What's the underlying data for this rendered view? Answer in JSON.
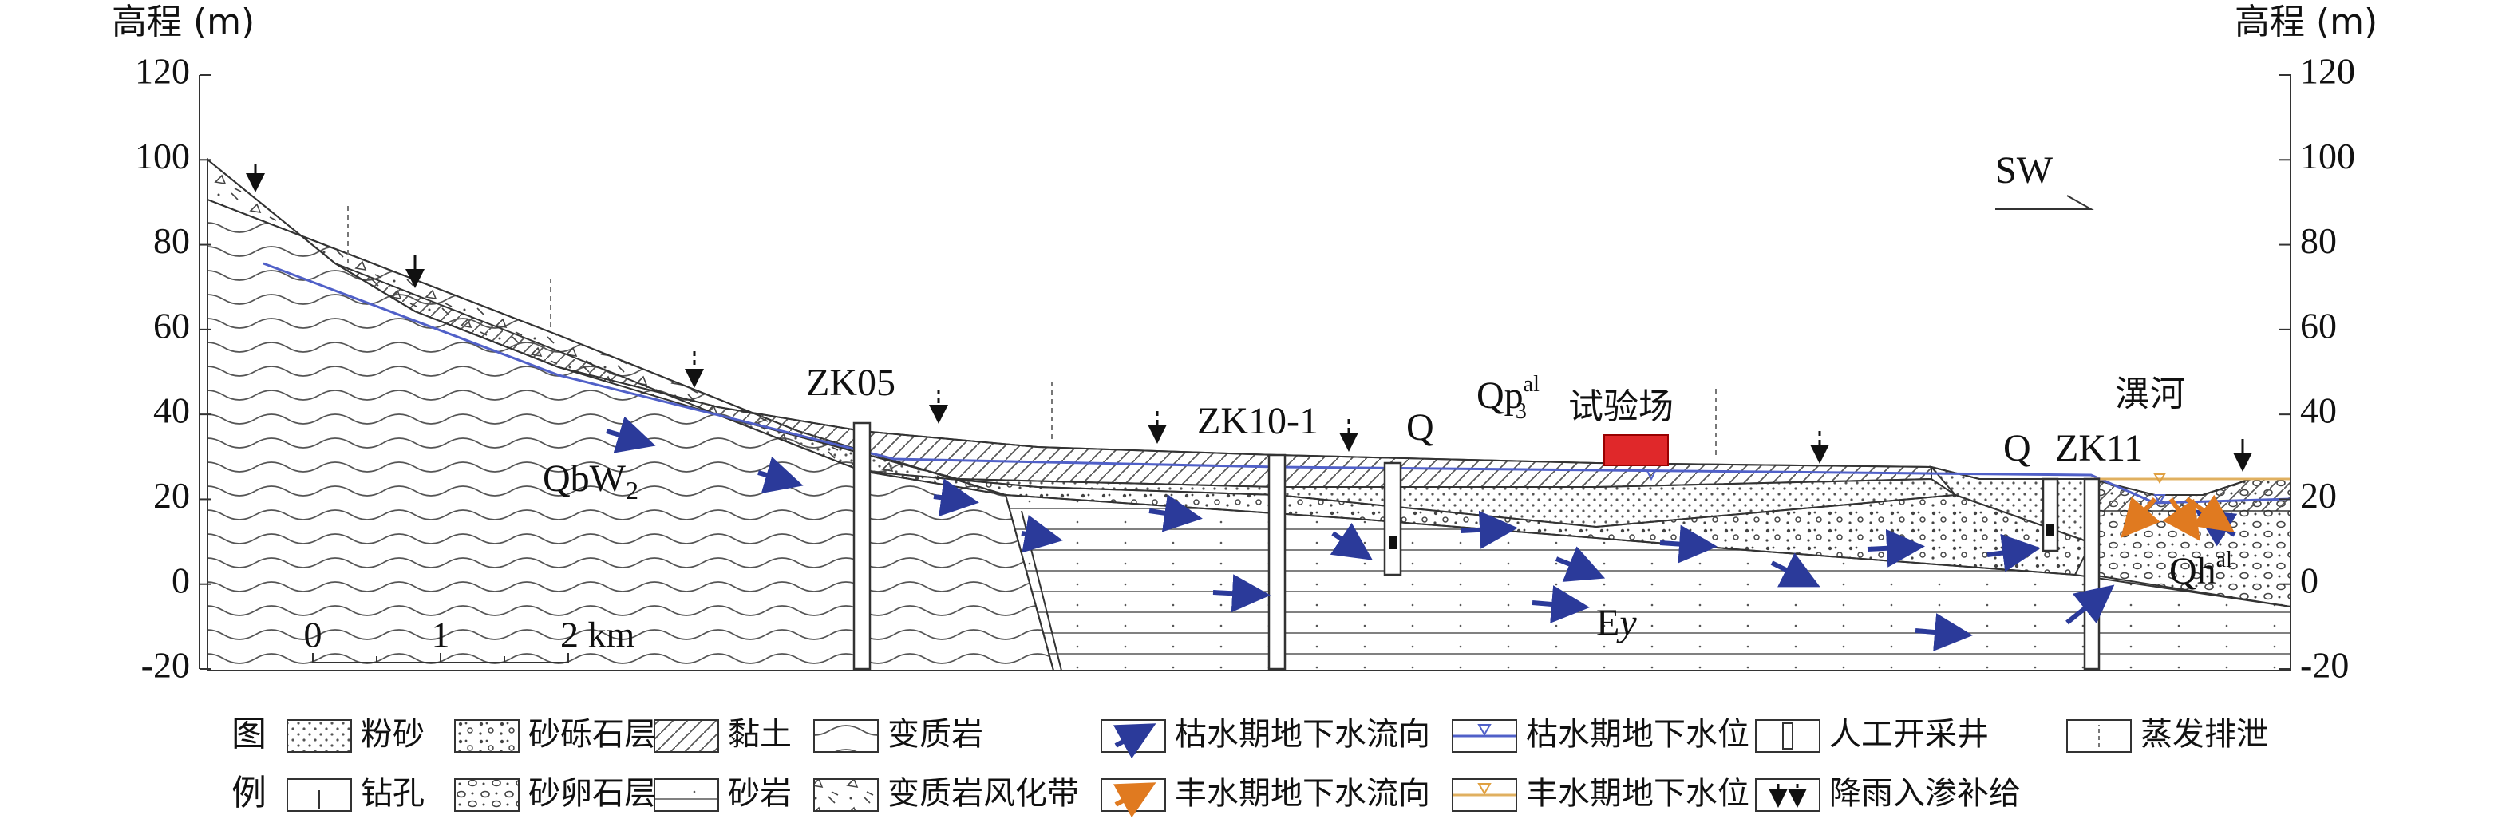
{
  "axis": {
    "title_left": "高程 (m)",
    "title_right": "高程 (m)",
    "ticks": [
      120,
      100,
      80,
      60,
      40,
      20,
      0,
      -20
    ]
  },
  "direction": "SW",
  "labels": [
    "ZK05",
    "ZK10-1",
    "Q",
    "试验场",
    "Q",
    "ZK11",
    "潩河"
  ],
  "formations": {
    "qbw": {
      "text": "QbW",
      "sub": "2"
    },
    "qp": {
      "text": "Qp",
      "sub": "3",
      "sup": "al"
    },
    "qh": {
      "text": "Qh",
      "sup": "al"
    },
    "ey": {
      "text": "E",
      "italic": "y"
    }
  },
  "scale_bar": [
    "0",
    "1",
    "2 km"
  ],
  "legend": {
    "title": [
      "图",
      "例"
    ],
    "row1": [
      "粉砂",
      "砂砾石层",
      "黏土",
      "变质岩",
      "枯水期地下水流向",
      "枯水期地下水位",
      "人工开采井",
      "蒸发排泄"
    ],
    "row2": [
      "钻孔",
      "砂卵石层",
      "砂岩",
      "变质岩风化带",
      "丰水期地下水流向",
      "丰水期地下水位",
      "降雨入渗补给"
    ]
  }
}
